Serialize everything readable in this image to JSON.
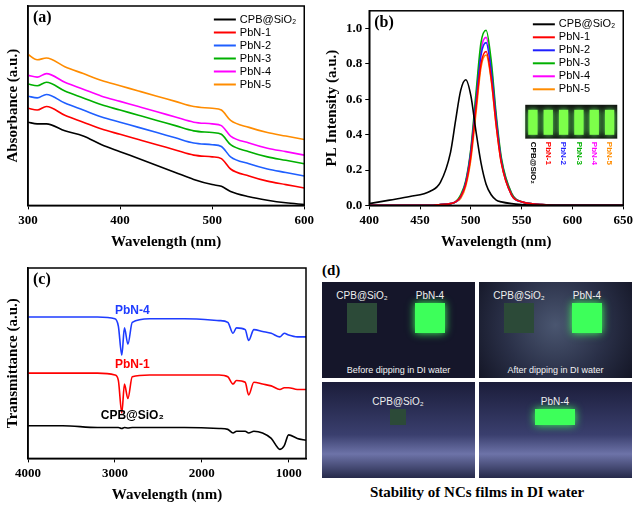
{
  "chart_data": [
    {
      "type": "line",
      "panel_label": "(a)",
      "x_label": "Wavelength (nm)",
      "y_label": "Absorbance (a.u.)",
      "x": [
        300,
        310,
        320,
        340,
        360,
        380,
        400,
        420,
        440,
        460,
        480,
        500,
        510,
        520,
        540,
        560,
        580,
        600
      ],
      "xlim": [
        300,
        600
      ],
      "xticks": [
        300,
        400,
        500,
        600
      ],
      "ylim": [
        0,
        1.15
      ],
      "tick_labels": "x",
      "legend": "upper right",
      "series": [
        {
          "name": "CPB@SiO₂",
          "color": "#000000",
          "values": [
            0.48,
            0.47,
            0.47,
            0.43,
            0.4,
            0.35,
            0.31,
            0.27,
            0.23,
            0.19,
            0.15,
            0.12,
            0.11,
            0.08,
            0.05,
            0.03,
            0.015,
            0.005
          ]
        },
        {
          "name": "PbN-1",
          "color": "#ff0000",
          "values": [
            0.56,
            0.55,
            0.57,
            0.52,
            0.48,
            0.44,
            0.41,
            0.38,
            0.35,
            0.32,
            0.29,
            0.28,
            0.27,
            0.21,
            0.17,
            0.14,
            0.12,
            0.1
          ]
        },
        {
          "name": "PbN-2",
          "color": "#1f5fff",
          "values": [
            0.63,
            0.62,
            0.64,
            0.59,
            0.55,
            0.51,
            0.48,
            0.45,
            0.42,
            0.39,
            0.36,
            0.35,
            0.34,
            0.28,
            0.24,
            0.21,
            0.19,
            0.17
          ]
        },
        {
          "name": "PbN-3",
          "color": "#00b000",
          "values": [
            0.7,
            0.69,
            0.71,
            0.66,
            0.62,
            0.58,
            0.55,
            0.52,
            0.49,
            0.46,
            0.43,
            0.42,
            0.41,
            0.35,
            0.31,
            0.28,
            0.26,
            0.24
          ]
        },
        {
          "name": "PbN-4",
          "color": "#ff00ff",
          "values": [
            0.75,
            0.74,
            0.76,
            0.71,
            0.67,
            0.63,
            0.6,
            0.57,
            0.54,
            0.51,
            0.48,
            0.47,
            0.46,
            0.4,
            0.36,
            0.33,
            0.31,
            0.29
          ]
        },
        {
          "name": "PbN-5",
          "color": "#ff8c00",
          "values": [
            0.87,
            0.84,
            0.85,
            0.8,
            0.76,
            0.72,
            0.69,
            0.66,
            0.63,
            0.6,
            0.57,
            0.56,
            0.55,
            0.49,
            0.45,
            0.42,
            0.4,
            0.38
          ]
        }
      ]
    },
    {
      "type": "line",
      "panel_label": "(b)",
      "x_label": "Wavelength (nm)",
      "y_label": "PL Intensity (a.u.)",
      "x": [
        400,
        420,
        440,
        460,
        470,
        480,
        485,
        490,
        495,
        500,
        505,
        510,
        515,
        520,
        525,
        530,
        540,
        550,
        570,
        600,
        650
      ],
      "xlim": [
        400,
        650
      ],
      "xticks": [
        400,
        450,
        500,
        550,
        600,
        650
      ],
      "ylim": [
        0,
        1.1
      ],
      "yticks": [
        {
          "value": 0,
          "label": "0.0"
        },
        0.2,
        0.4,
        0.6,
        0.8,
        {
          "value": 1,
          "label": "1.0"
        }
      ],
      "legend": "upper right",
      "inset": {
        "labels": [
          "CPB@SiO₂",
          "PbN-1",
          "PbN-2",
          "PbN-3",
          "PbN-4",
          "PbN-5"
        ]
      },
      "series": [
        {
          "name": "CPB@SiO₂",
          "color": "#000000",
          "values": [
            0.01,
            0.03,
            0.05,
            0.08,
            0.13,
            0.3,
            0.48,
            0.65,
            0.71,
            0.62,
            0.42,
            0.24,
            0.12,
            0.06,
            0.03,
            0.02,
            0.01,
            0.005,
            0,
            0,
            0
          ]
        },
        {
          "name": "PbN-1",
          "color": "#ff0000",
          "values": [
            0,
            0,
            0,
            0,
            0.005,
            0.01,
            0.02,
            0.05,
            0.12,
            0.28,
            0.55,
            0.8,
            0.87,
            0.72,
            0.45,
            0.24,
            0.06,
            0.02,
            0.005,
            0,
            0
          ]
        },
        {
          "name": "PbN-2",
          "color": "#1f1fff",
          "values": [
            0,
            0,
            0,
            0,
            0.005,
            0.01,
            0.02,
            0.05,
            0.13,
            0.3,
            0.58,
            0.85,
            0.92,
            0.76,
            0.48,
            0.25,
            0.06,
            0.02,
            0.005,
            0,
            0
          ]
        },
        {
          "name": "PbN-3",
          "color": "#00b000",
          "values": [
            0,
            0,
            0,
            0,
            0.005,
            0.01,
            0.02,
            0.06,
            0.14,
            0.32,
            0.63,
            0.92,
            0.99,
            0.82,
            0.51,
            0.27,
            0.07,
            0.02,
            0.005,
            0,
            0
          ]
        },
        {
          "name": "PbN-4",
          "color": "#ff00ff",
          "values": [
            0,
            0,
            0,
            0,
            0.005,
            0.01,
            0.02,
            0.05,
            0.13,
            0.31,
            0.6,
            0.88,
            0.95,
            0.79,
            0.49,
            0.26,
            0.07,
            0.02,
            0.005,
            0,
            0
          ]
        },
        {
          "name": "PbN-5",
          "color": "#ff8c00",
          "values": [
            0,
            0,
            0,
            0,
            0.005,
            0.01,
            0.02,
            0.04,
            0.11,
            0.26,
            0.52,
            0.78,
            0.85,
            0.71,
            0.45,
            0.24,
            0.06,
            0.02,
            0.005,
            0,
            0
          ]
        }
      ]
    },
    {
      "type": "line",
      "panel_label": "(c)",
      "x_label": "Wavelength (nm)",
      "y_label": "Transmittance (a.u.)",
      "x": [
        4000,
        3600,
        3200,
        3000,
        2960,
        2920,
        2890,
        2850,
        2800,
        2600,
        2200,
        1800,
        1700,
        1640,
        1600,
        1500,
        1460,
        1400,
        1300,
        1200,
        1100,
        1050,
        1000,
        900,
        800
      ],
      "xlim": [
        4000,
        800
      ],
      "xticks": [
        4000,
        3000,
        2000,
        1000
      ],
      "ylim": [
        -0.05,
        1
      ],
      "tick_labels": "x",
      "series": [
        {
          "name": "CPB@SiO₂",
          "color": "#000000",
          "values": [
            0.13,
            0.13,
            0.12,
            0.12,
            0.12,
            0.115,
            0.12,
            0.118,
            0.12,
            0.12,
            0.12,
            0.115,
            0.11,
            0.09,
            0.1,
            0.1,
            0.09,
            0.1,
            0.09,
            0.06,
            0.0,
            0.02,
            0.08,
            0.06,
            0.05
          ]
        },
        {
          "name": "PbN-1",
          "color": "#ff0000",
          "values": [
            0.42,
            0.42,
            0.42,
            0.41,
            0.38,
            0.2,
            0.36,
            0.28,
            0.4,
            0.41,
            0.41,
            0.41,
            0.4,
            0.36,
            0.38,
            0.37,
            0.3,
            0.37,
            0.36,
            0.35,
            0.33,
            0.34,
            0.34,
            0.33,
            0.33
          ]
        },
        {
          "name": "PbN-4",
          "color": "#1e3cff",
          "values": [
            0.73,
            0.73,
            0.73,
            0.72,
            0.68,
            0.52,
            0.67,
            0.58,
            0.7,
            0.72,
            0.72,
            0.71,
            0.7,
            0.64,
            0.67,
            0.66,
            0.6,
            0.66,
            0.65,
            0.64,
            0.62,
            0.64,
            0.63,
            0.62,
            0.62
          ]
        }
      ]
    }
  ],
  "photo_panel": {
    "panel_label": "(d)",
    "photos": [
      {
        "labels": [
          "CPB@SiO₂",
          "PbN-4"
        ],
        "caption": "Before dipping in DI water"
      },
      {
        "labels": [
          "CPB@SiO₂",
          "PbN-4"
        ],
        "caption": "After dipping in DI water"
      },
      {
        "labels": [
          "CPB@SiO₂"
        ]
      },
      {
        "labels": [
          "PbN-4"
        ]
      }
    ],
    "title": "Stability of NCs films in DI water"
  }
}
